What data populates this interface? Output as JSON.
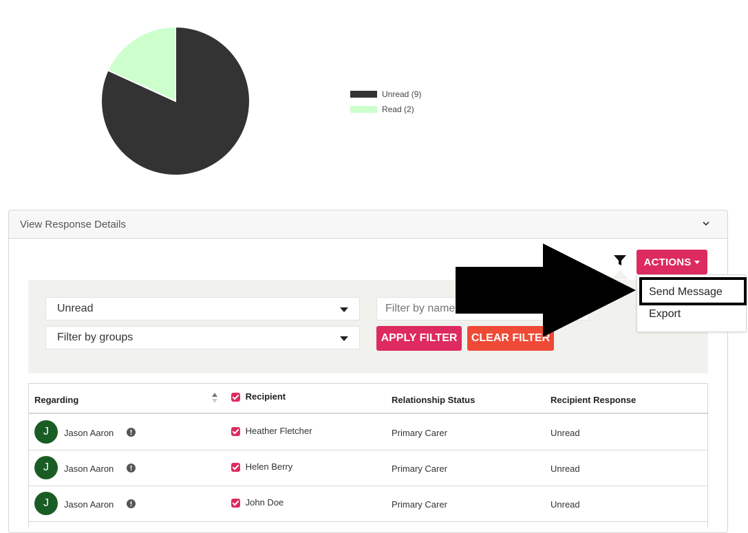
{
  "chart": {
    "legend": [
      {
        "label": "Unread (9)",
        "color": "#333333"
      },
      {
        "label": "Read (2)",
        "color": "#ccffcc"
      }
    ]
  },
  "chart_data": {
    "type": "pie",
    "categories": [
      "Unread",
      "Read"
    ],
    "values": [
      9,
      2
    ],
    "colors": [
      "#333333",
      "#ccffcc"
    ],
    "legend_position": "right"
  },
  "panel": {
    "title": "View Response Details"
  },
  "toolbar": {
    "actions_label": "ACTIONS",
    "filter_icon": "funnel-icon"
  },
  "actions_menu": {
    "items": [
      "Send Message",
      "Export"
    ],
    "highlighted": "Send Message"
  },
  "filters": {
    "status_selected": "Unread",
    "groups_selected": "Filter by groups",
    "name_placeholder": "Filter by name",
    "apply_label": "APPLY FILTER",
    "clear_label": "CLEAR FILTER"
  },
  "table": {
    "columns": [
      "Regarding",
      "Recipient",
      "Relationship Status",
      "Recipient Response"
    ],
    "rows": [
      {
        "avatar": "J",
        "regarding": "Jason Aaron",
        "recipient": "Heather Fletcher",
        "relationship": "Primary Carer",
        "response": "Unread"
      },
      {
        "avatar": "J",
        "regarding": "Jason Aaron",
        "recipient": "Helen Berry",
        "relationship": "Primary Carer",
        "response": "Unread"
      },
      {
        "avatar": "J",
        "regarding": "Jason Aaron",
        "recipient": "John Doe",
        "relationship": "Primary Carer",
        "response": "Unread"
      }
    ]
  },
  "colors": {
    "accent": "#dd2a5f",
    "clear_button": "#ee4a36",
    "avatar": "#195d24"
  }
}
